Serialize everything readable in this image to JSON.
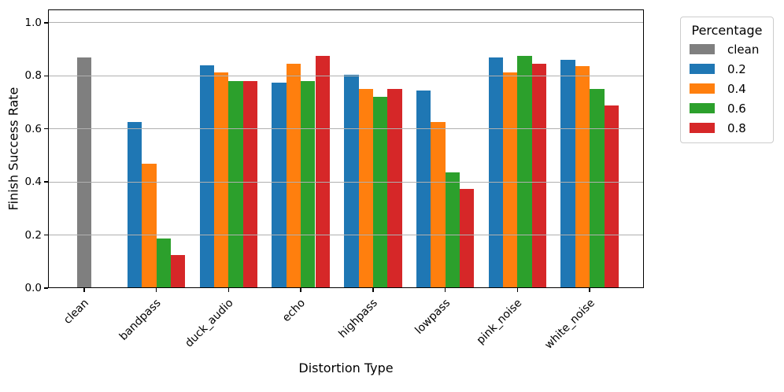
{
  "chart_data": {
    "type": "bar",
    "title": "",
    "xlabel": "Distortion Type",
    "ylabel": "Finish Success Rate",
    "categories": [
      "clean",
      "bandpass",
      "duck_audio",
      "echo",
      "highpass",
      "lowpass",
      "pink_noise",
      "white_noise"
    ],
    "series": [
      {
        "name": "clean",
        "color": "#7f7f7f",
        "values": [
          0.87,
          null,
          null,
          null,
          null,
          null,
          null,
          null
        ]
      },
      {
        "name": "0.2",
        "color": "#1f77b4",
        "values": [
          null,
          0.625,
          0.84,
          0.775,
          0.805,
          0.745,
          0.87,
          0.86
        ]
      },
      {
        "name": "0.4",
        "color": "#ff7f0e",
        "values": [
          null,
          0.47,
          0.8125,
          0.845,
          0.75,
          0.625,
          0.8125,
          0.835
        ]
      },
      {
        "name": "0.6",
        "color": "#2ca02c",
        "values": [
          null,
          0.1875,
          0.78,
          0.78,
          0.72,
          0.4375,
          0.875,
          0.75
        ]
      },
      {
        "name": "0.8",
        "color": "#d62728",
        "values": [
          null,
          0.125,
          0.78,
          0.875,
          0.75,
          0.375,
          0.845,
          0.6875
        ]
      }
    ],
    "yticks": [
      "0.0",
      "0.2",
      "0.4",
      "0.6",
      "0.8",
      "1.0"
    ],
    "ylim": [
      0,
      1.05
    ],
    "bar_width_units": 0.2,
    "grid": true,
    "grid_on_top_of_bars": true,
    "legend": {
      "title": "Percentage",
      "position": "outside-upper-right",
      "entries": [
        "clean",
        "0.2",
        "0.4",
        "0.6",
        "0.8"
      ]
    }
  }
}
